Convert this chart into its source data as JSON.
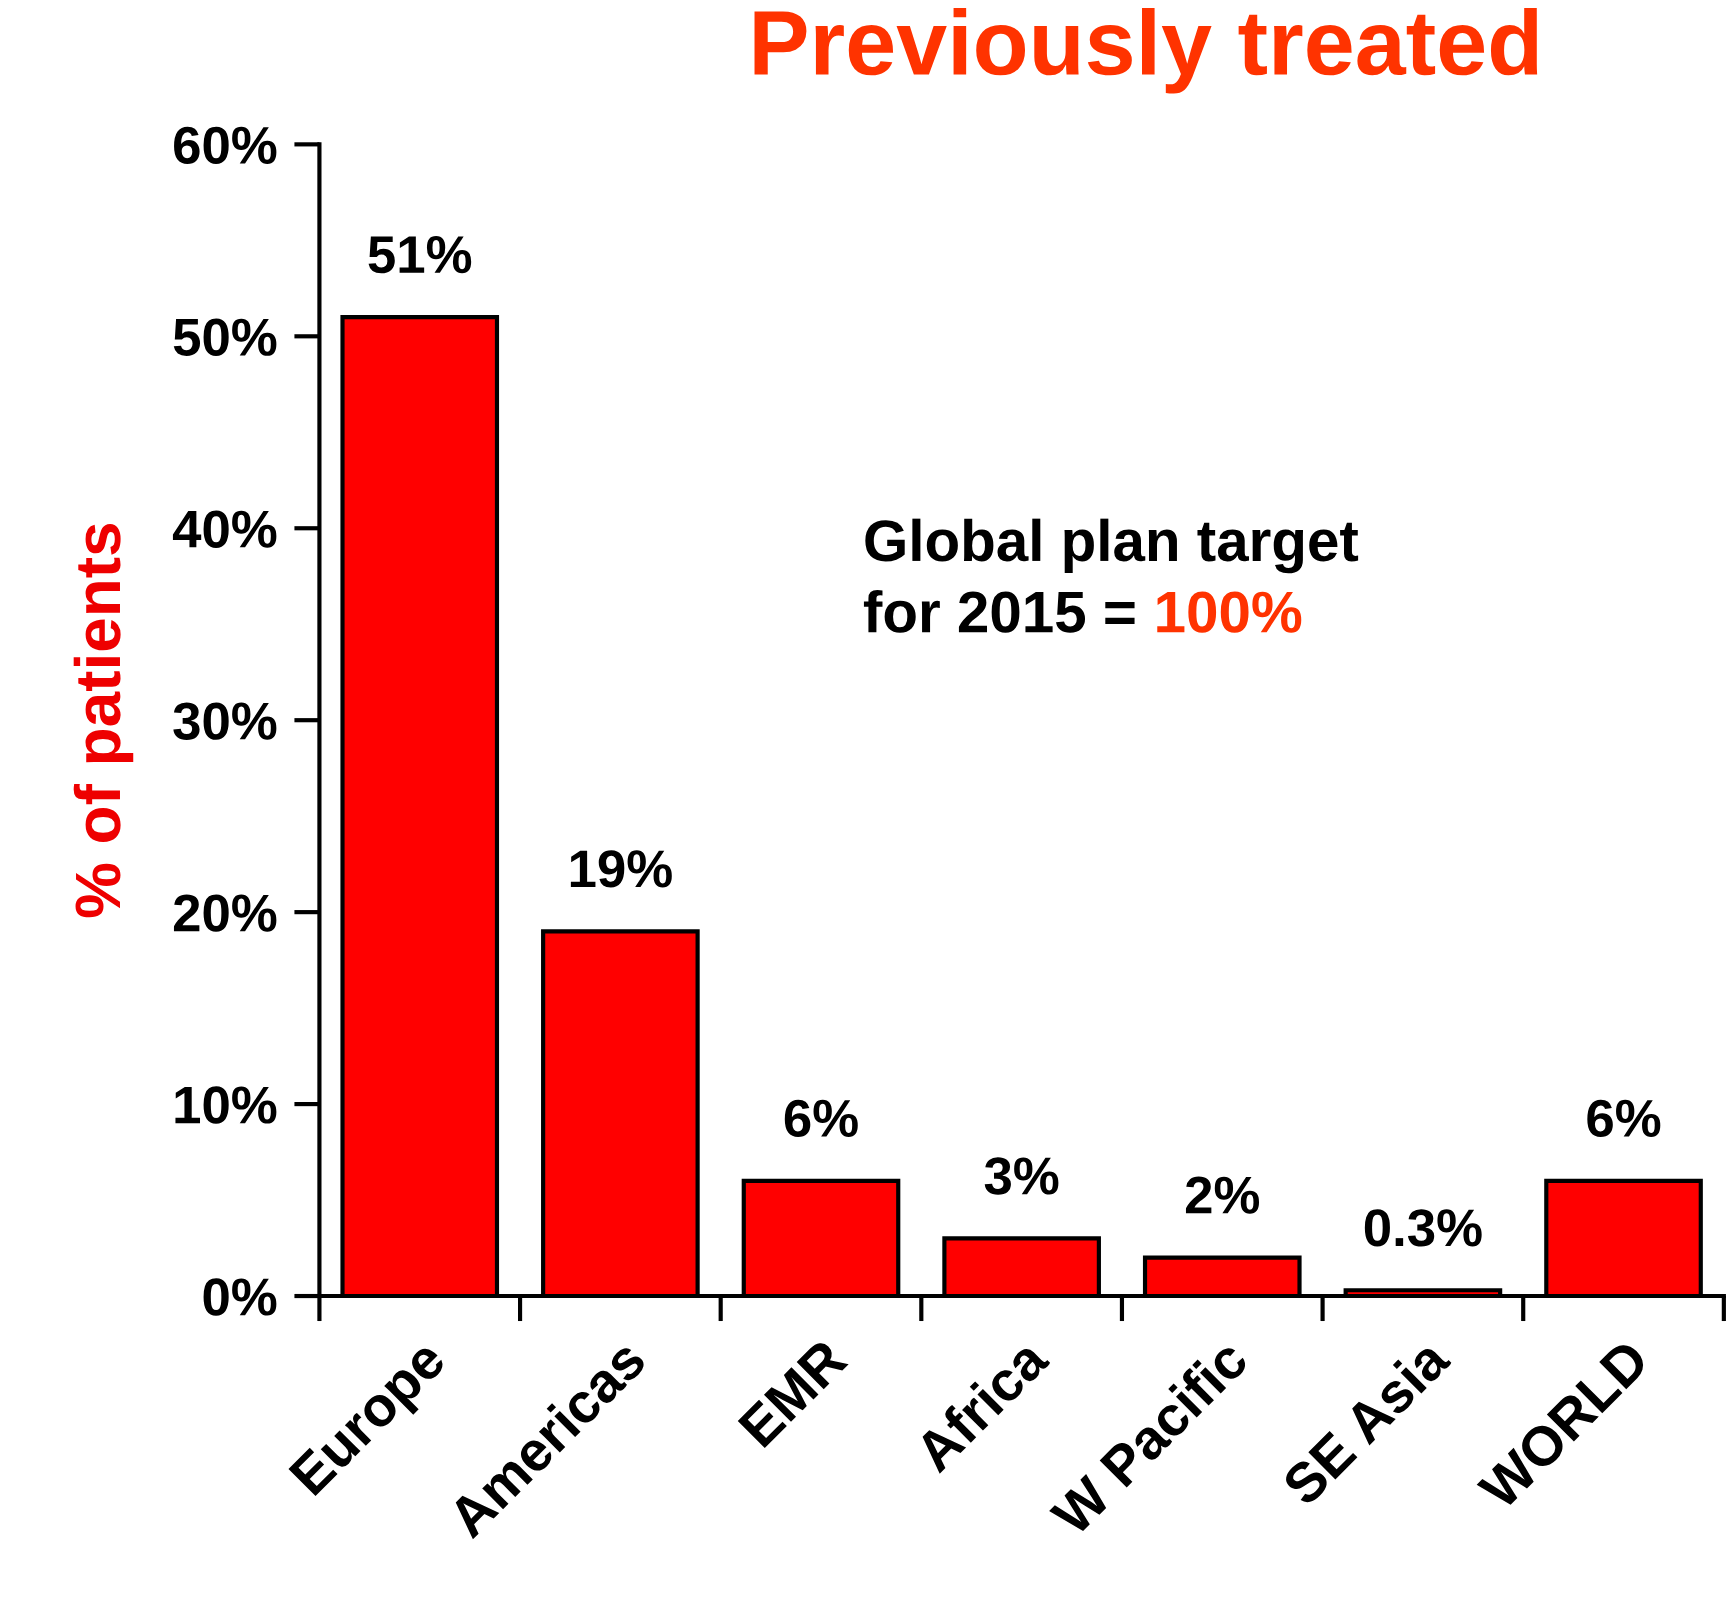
{
  "chart_data": {
    "type": "bar",
    "title": "Previously treated",
    "ylabel": "% of patients",
    "categories": [
      "Europe",
      "Americas",
      "EMR",
      "Africa",
      "W Pacific",
      "SE Asia",
      "WORLD"
    ],
    "values": [
      51,
      19,
      6,
      3,
      2,
      0.3,
      6
    ],
    "color": "#ff0000",
    "value_labels": [
      "51%",
      "19%",
      "6%",
      "3%",
      "2%",
      "0.3%",
      "6%"
    ],
    "ylim": [
      0,
      60
    ],
    "yticks": [
      {
        "value": 0,
        "label": "0%"
      },
      {
        "value": 10,
        "label": "10%"
      },
      {
        "value": 20,
        "label": "20%"
      },
      {
        "value": 30,
        "label": "30%"
      },
      {
        "value": 40,
        "label": "40%"
      },
      {
        "value": 50,
        "label": "50%"
      },
      {
        "value": 60,
        "label": "60%"
      }
    ],
    "annotations": [
      "Global plan target",
      "for 2015 =",
      "100%"
    ],
    "grid": false,
    "legend": false
  }
}
